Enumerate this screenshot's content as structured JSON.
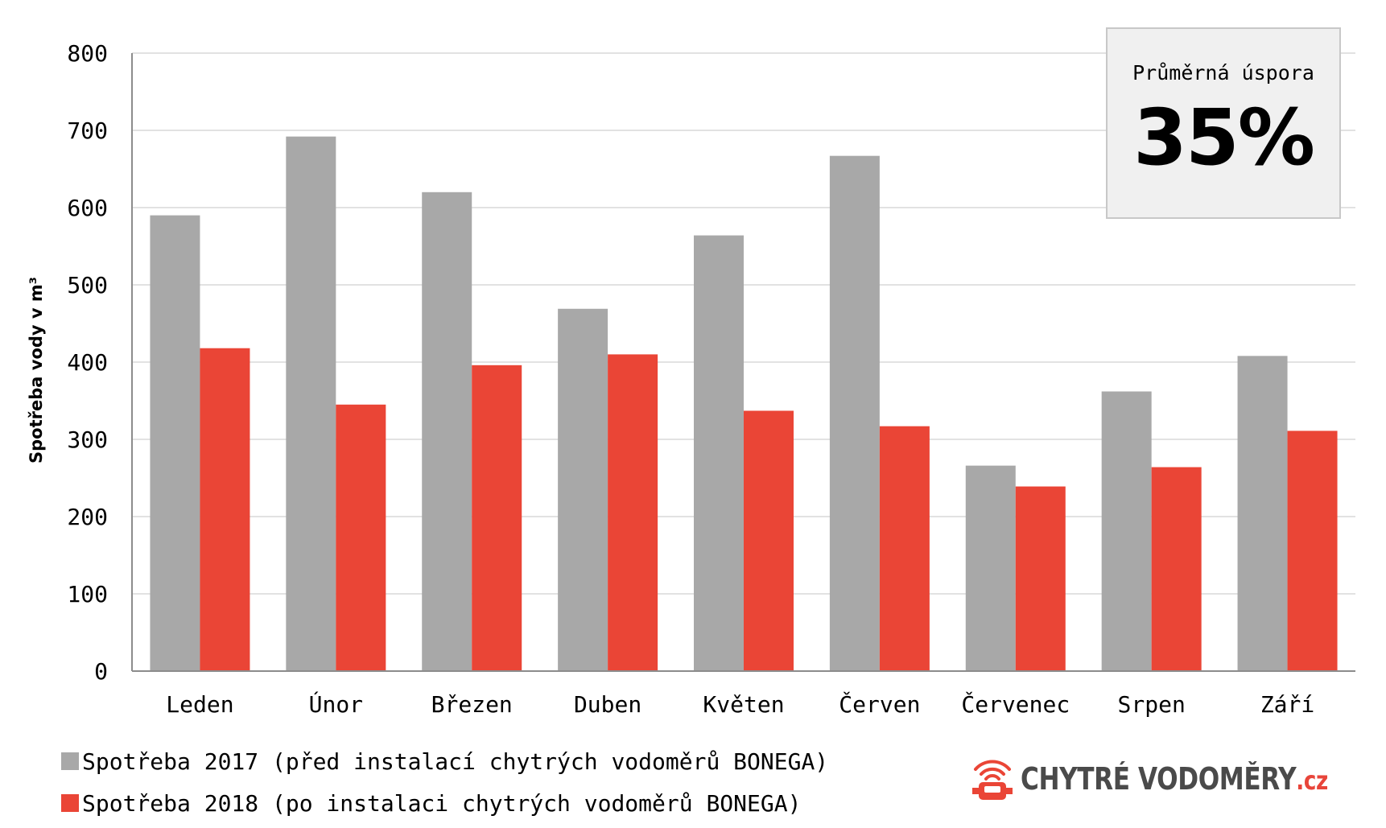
{
  "chart_data": {
    "type": "bar",
    "title": "",
    "xlabel": "",
    "ylabel": "Spotřeba vody v m³",
    "ylim": [
      0,
      800
    ],
    "yticks": [
      0,
      100,
      200,
      300,
      400,
      500,
      600,
      700,
      800
    ],
    "grid": true,
    "categories": [
      "Leden",
      "Únor",
      "Březen",
      "Duben",
      "Květen",
      "Červen",
      "Červenec",
      "Srpen",
      "Září"
    ],
    "series": [
      {
        "name": "Spotřeba 2017 (před instalací chytrých vodoměrů BONEGA)",
        "color": "#a8a8a8",
        "values": [
          590,
          692,
          620,
          469,
          564,
          667,
          266,
          362,
          408
        ]
      },
      {
        "name": "Spotřeba 2018 (po instalaci chytrých vodoměrů BONEGA)",
        "color": "#ea4536",
        "values": [
          418,
          345,
          396,
          410,
          337,
          317,
          239,
          264,
          311
        ]
      }
    ],
    "legend_position": "bottom-left"
  },
  "savings_box": {
    "label": "Průměrná úspora",
    "value": "35%"
  },
  "logo": {
    "text": "CHYTRÉ VODOMĚRY",
    "suffix": ".cz",
    "accent_color": "#ea4536",
    "icon": "water-meter-signal-icon"
  }
}
